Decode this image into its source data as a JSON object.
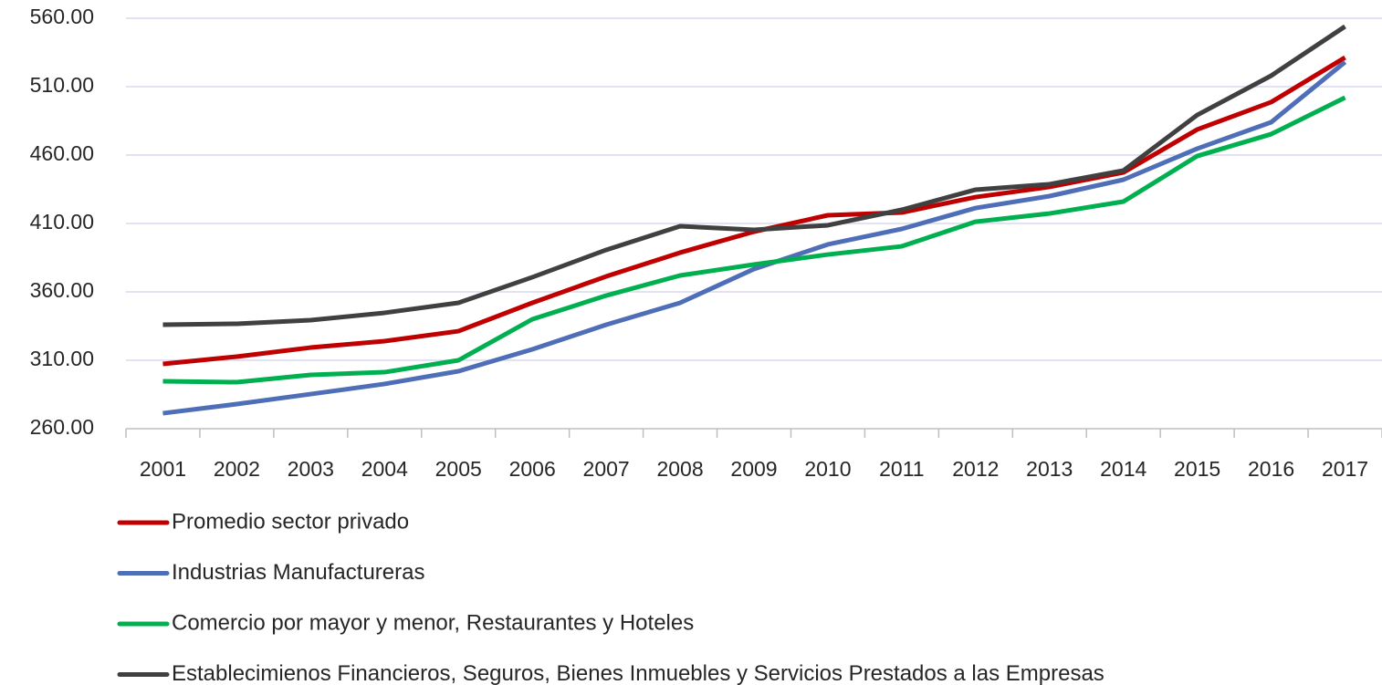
{
  "chart_data": {
    "type": "line",
    "categories": [
      "2001",
      "2002",
      "2003",
      "2004",
      "2005",
      "2006",
      "2007",
      "2008",
      "2009",
      "2010",
      "2011",
      "2012",
      "2013",
      "2014",
      "2015",
      "2016",
      "2017"
    ],
    "series": [
      {
        "name": "Promedio sector privado",
        "color": "#c00000",
        "values": [
          307.3,
          312.7,
          319.3,
          324,
          331.3,
          352,
          371.3,
          388.7,
          404,
          416,
          418,
          429.3,
          436.7,
          447.3,
          478.7,
          498.7,
          531.3
        ]
      },
      {
        "name": "Industrias Manufactureras",
        "color": "#4f6eb8",
        "values": [
          271.3,
          278,
          285.3,
          292.7,
          302,
          318,
          336,
          352,
          376.7,
          394.7,
          406,
          421.3,
          430,
          442,
          464.7,
          484,
          528
        ]
      },
      {
        "name": "Comercio por mayor y menor, Restaurantes y Hoteles",
        "color": "#00b050",
        "values": [
          294.7,
          294,
          299.3,
          301.3,
          310,
          340,
          357.3,
          372,
          380,
          387.3,
          393.3,
          411.3,
          417.3,
          426,
          459.3,
          475.3,
          502
        ]
      },
      {
        "name": "Establecimienos Financieros, Seguros, Bienes Inmuebles y Servicios Prestados a las Empresas",
        "color": "#404040",
        "values": [
          336,
          336.7,
          339.3,
          344.7,
          352,
          370.7,
          390.7,
          408,
          405.3,
          408.7,
          420,
          434.7,
          438.7,
          448.7,
          489.3,
          518,
          554
        ]
      }
    ],
    "ylim": [
      260,
      560
    ],
    "yticks": [
      {
        "value": 260,
        "label": "260.00"
      },
      {
        "value": 310,
        "label": "310.00"
      },
      {
        "value": 360,
        "label": "360.00"
      },
      {
        "value": 410,
        "label": "410.00"
      },
      {
        "value": 460,
        "label": "460.00"
      },
      {
        "value": 510,
        "label": "510.00"
      },
      {
        "value": 560,
        "label": "560.00"
      }
    ],
    "grid": true,
    "legend": "bottom"
  }
}
